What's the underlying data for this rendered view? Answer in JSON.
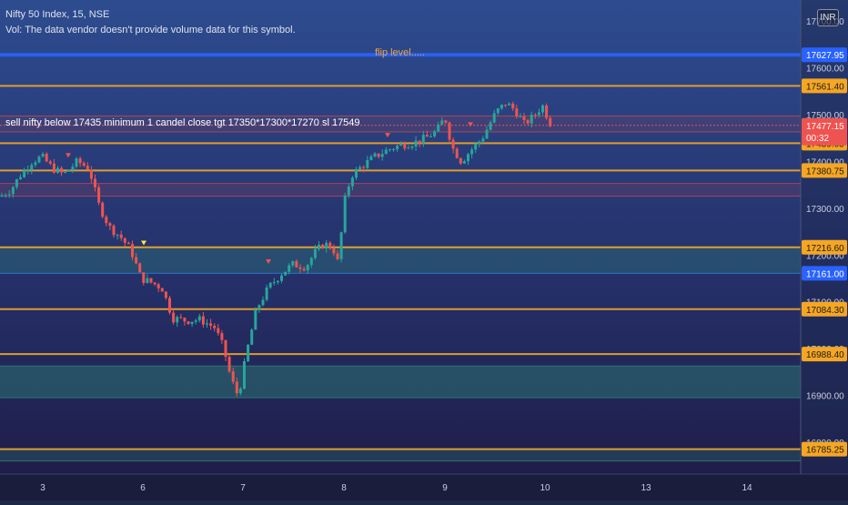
{
  "header": {
    "symbol_line": "Nifty 50 Index, 15, NSE",
    "volume_note": "Vol: The data vendor doesn't provide volume data for this symbol.",
    "currency": "INR"
  },
  "annotations": {
    "trade_note": "sell nifty below 17435 minimum 1 candel close tgt 17350*17300*17270 sl 17549",
    "flip_label": "flip level....."
  },
  "chart_data": {
    "type": "candlestick",
    "title": "Nifty 50 Index, 15, NSE",
    "y_range": [
      16732,
      17745
    ],
    "y_ticks": [
      "17700.00",
      "17600.00",
      "17500.00",
      "17400.00",
      "17300.00",
      "17200.00",
      "17100.00",
      "17000.00",
      "16900.00",
      "16800.00"
    ],
    "x_ticks": [
      "3",
      "6",
      "7",
      "8",
      "9",
      "10",
      "13",
      "14"
    ],
    "price_levels": [
      {
        "price": 17627.95,
        "label": "17627.95",
        "color": "#2962ff",
        "kind": "flip"
      },
      {
        "price": 17561.4,
        "label": "17561.40",
        "color": "#f5a623",
        "kind": "line"
      },
      {
        "price": 17439.05,
        "label": "17439.05",
        "color": "#f5a623",
        "kind": "line"
      },
      {
        "price": 17380.75,
        "label": "17380.75",
        "color": "#f5a623",
        "kind": "line"
      },
      {
        "price": 17216.6,
        "label": "17216.60",
        "color": "#f5a623",
        "kind": "line"
      },
      {
        "price": 17161.0,
        "label": "17161.00",
        "color": "#2962ff",
        "kind": "tag"
      },
      {
        "price": 17084.3,
        "label": "17084.30",
        "color": "#f5a623",
        "kind": "line"
      },
      {
        "price": 16988.4,
        "label": "16988.40",
        "color": "#f5a623",
        "kind": "line"
      },
      {
        "price": 16785.25,
        "label": "16785.25",
        "color": "#f5a623",
        "kind": "line"
      }
    ],
    "zones": [
      {
        "from": 17463,
        "to": 17497,
        "color": "#d94a4a",
        "opacity": 0.12
      },
      {
        "from": 17326,
        "to": 17353,
        "color": "#d94a4a",
        "opacity": 0.14
      },
      {
        "from": 17161,
        "to": 17216.6,
        "color": "#2f8f7a",
        "opacity": 0.3
      },
      {
        "from": 16895,
        "to": 16963,
        "color": "#2f8f7a",
        "opacity": 0.4
      },
      {
        "from": 16760,
        "to": 16785.25,
        "color": "#2f8f7a",
        "opacity": 0.25
      }
    ],
    "last_price": {
      "value": 17477.15,
      "label": "17477.15",
      "countdown": "00:32"
    },
    "path": [
      [
        0,
        17325
      ],
      [
        12,
        17340
      ],
      [
        22,
        17370
      ],
      [
        35,
        17400
      ],
      [
        46,
        17410
      ],
      [
        58,
        17385
      ],
      [
        70,
        17372
      ],
      [
        85,
        17400
      ],
      [
        98,
        17385
      ],
      [
        108,
        17310
      ],
      [
        120,
        17260
      ],
      [
        132,
        17240
      ],
      [
        144,
        17210
      ],
      [
        155,
        17150
      ],
      [
        168,
        17140
      ],
      [
        178,
        17130
      ],
      [
        190,
        17065
      ],
      [
        205,
        17060
      ],
      [
        220,
        17062
      ],
      [
        236,
        17045
      ],
      [
        246,
        17000
      ],
      [
        254,
        16935
      ],
      [
        262,
        16898
      ],
      [
        272,
        17000
      ],
      [
        282,
        17085
      ],
      [
        295,
        17130
      ],
      [
        310,
        17162
      ],
      [
        322,
        17180
      ],
      [
        336,
        17175
      ],
      [
        346,
        17205
      ],
      [
        356,
        17225
      ],
      [
        366,
        17215
      ],
      [
        372,
        17180
      ],
      [
        378,
        17310
      ],
      [
        386,
        17370
      ],
      [
        398,
        17390
      ],
      [
        412,
        17410
      ],
      [
        426,
        17425
      ],
      [
        440,
        17435
      ],
      [
        455,
        17440
      ],
      [
        468,
        17450
      ],
      [
        480,
        17465
      ],
      [
        489,
        17495
      ],
      [
        497,
        17430
      ],
      [
        507,
        17400
      ],
      [
        518,
        17425
      ],
      [
        530,
        17450
      ],
      [
        545,
        17505
      ],
      [
        556,
        17525
      ],
      [
        566,
        17510
      ],
      [
        576,
        17480
      ],
      [
        586,
        17495
      ],
      [
        596,
        17520
      ],
      [
        606,
        17477
      ]
    ]
  }
}
